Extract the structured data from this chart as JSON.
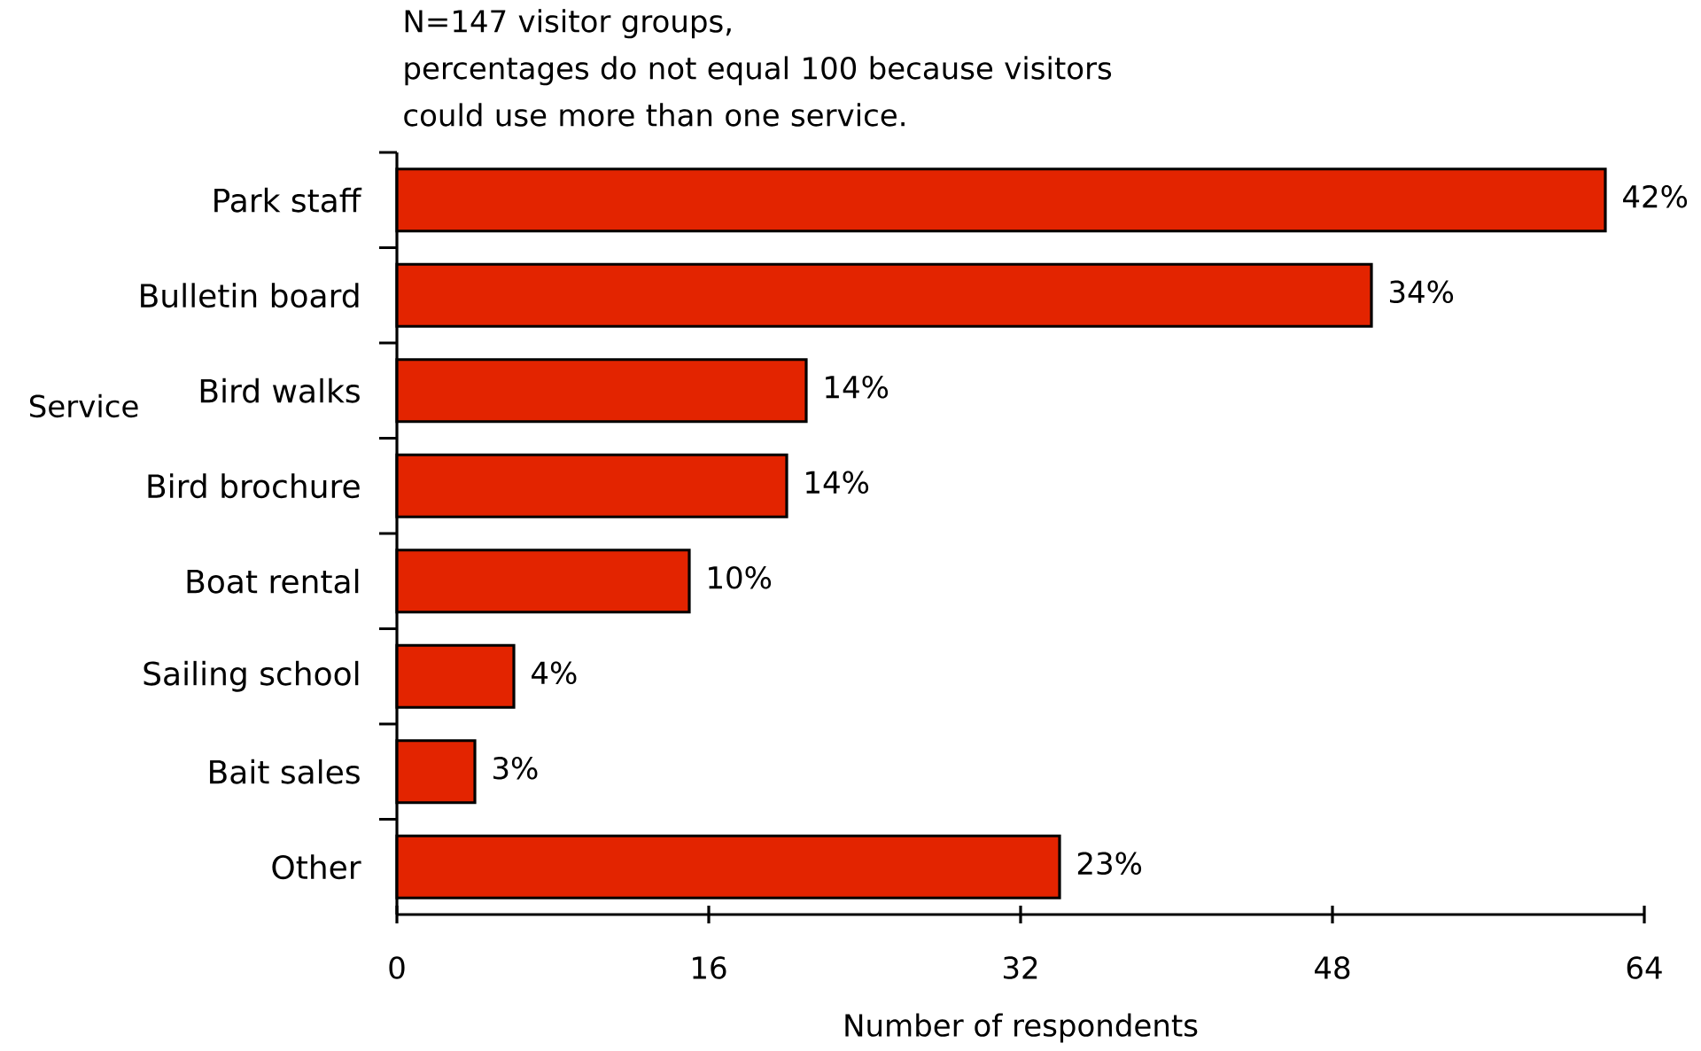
{
  "chart_data": {
    "type": "bar",
    "orientation": "horizontal",
    "annotations": [
      "N=147 visitor groups,",
      "percentages do not equal 100 because visitors could use more than one service.",
      {
        "text": "42%",
        "x": 62,
        "y": "Park staff"
      },
      {
        "text": "34%",
        "x": 50,
        "y": "Bulletin board"
      },
      {
        "text": "14%",
        "x": 21,
        "y": "Bird walks"
      },
      {
        "text": "14%",
        "x": 20,
        "y": "Bird brochure"
      },
      {
        "text": "10%",
        "x": 15,
        "y": "Boat rental"
      },
      {
        "text": "4%",
        "x": 6,
        "y": "Sailing school"
      },
      {
        "text": "3%",
        "x": 4,
        "y": "Bait sales"
      },
      {
        "text": "23%",
        "x": 34,
        "y": "Other"
      }
    ],
    "xlabel": "Number of respondents",
    "ylabel": "Service",
    "categories": [
      "Park staff",
      "Bulletin board",
      "Bird walks",
      "Bird brochure",
      "Boat rental",
      "Sailing school",
      "Bait sales",
      "Other"
    ],
    "values": [
      62,
      50,
      21,
      20,
      15,
      6,
      4,
      34
    ],
    "color": "#e32400",
    "xlim": [
      0,
      64
    ],
    "xticks": [
      0,
      16,
      32,
      48,
      64
    ]
  }
}
